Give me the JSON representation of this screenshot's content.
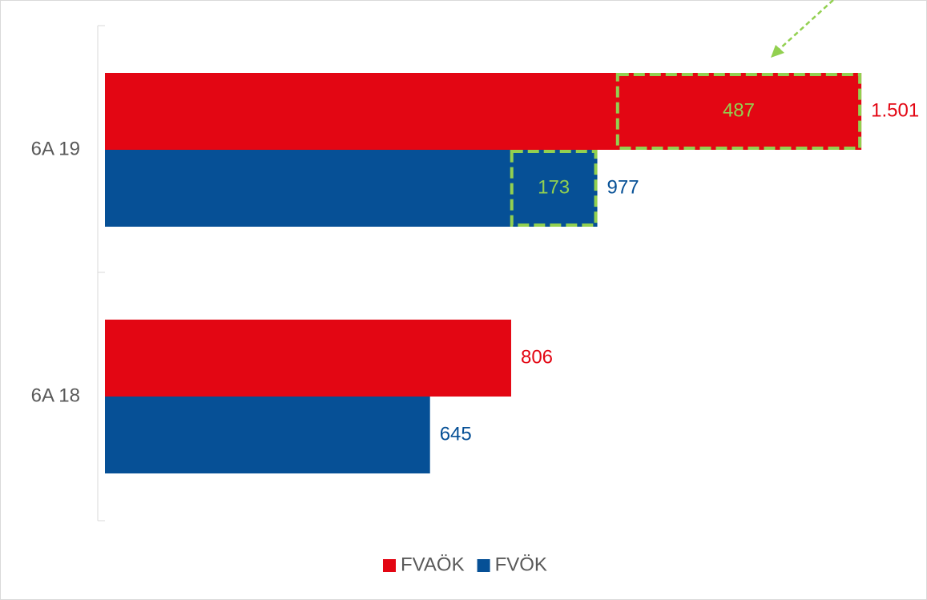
{
  "chart_data": {
    "type": "hbar",
    "categories": [
      "6A 19",
      "6A 18"
    ],
    "series": [
      {
        "name": "FVAÖK",
        "color": "#e30613",
        "values": [
          1501,
          806
        ],
        "value_labels": [
          "1.501",
          "806"
        ],
        "annotations": [
          487,
          null
        ]
      },
      {
        "name": "FVÖK",
        "color": "#065096",
        "values": [
          977,
          645
        ],
        "value_labels": [
          "977",
          "645"
        ],
        "annotations": [
          173,
          null
        ]
      }
    ],
    "annotation_color": "#92d050",
    "xlim": [
      0,
      1600
    ],
    "legend": "bottom"
  }
}
